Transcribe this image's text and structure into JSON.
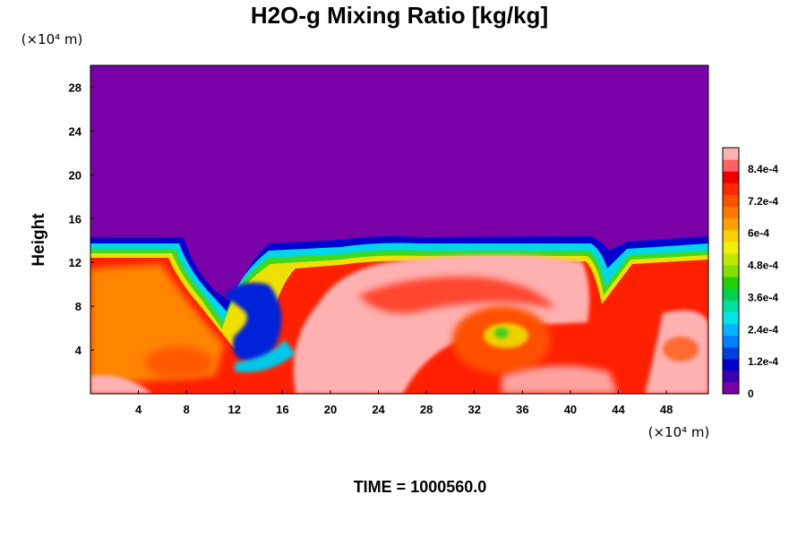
{
  "chart_data": {
    "type": "heatmap",
    "title": "H2O-g Mixing Ratio [kg/kg]",
    "ylabel": "Height",
    "xlabel": "",
    "x_unit_label": "(×10⁴ m)",
    "y_unit_label": "(×10⁴ m)",
    "xlim": [
      0,
      51.5
    ],
    "ylim": [
      0,
      30
    ],
    "x_ticks": [
      4,
      8,
      12,
      16,
      20,
      24,
      28,
      32,
      36,
      40,
      44,
      48
    ],
    "x_tick_labels": [
      "4",
      "8",
      "12",
      "16",
      "20",
      "24",
      "28",
      "32",
      "36",
      "40",
      "44",
      "48"
    ],
    "y_ticks": [
      4,
      8,
      12,
      16,
      20,
      24,
      28
    ],
    "y_tick_labels": [
      "4",
      "8",
      "12",
      "16",
      "20",
      "24",
      "28"
    ],
    "colorbar": {
      "min": 0,
      "max": 0.00092,
      "tick_values": [
        0,
        0.00012,
        0.00024,
        0.00036,
        0.00048,
        0.0006,
        0.00072,
        0.00084
      ],
      "tick_labels": [
        "0",
        "1.2e-4",
        "2.4e-4",
        "3.6e-4",
        "4.8e-4",
        "6e-4",
        "7.2e-4",
        "8.4e-4"
      ],
      "colors": [
        "#7a00a8",
        "#3c00b4",
        "#0000c8",
        "#0040e0",
        "#0080ff",
        "#00b4ff",
        "#00e6e6",
        "#00e0a0",
        "#00d050",
        "#20d000",
        "#80e000",
        "#c0e800",
        "#f0f000",
        "#ffd000",
        "#ffa000",
        "#ff7800",
        "#ff5000",
        "#ff2800",
        "#f00000",
        "#ff6060",
        "#ffb0b0"
      ]
    },
    "regions": [
      {
        "type": "moist_layer_top_km_x10e4",
        "value": 13.5
      },
      {
        "type": "dry_intrusion_center_x",
        "value": 14
      }
    ]
  },
  "footer": {
    "time_label": "TIME = 1000560.0"
  }
}
